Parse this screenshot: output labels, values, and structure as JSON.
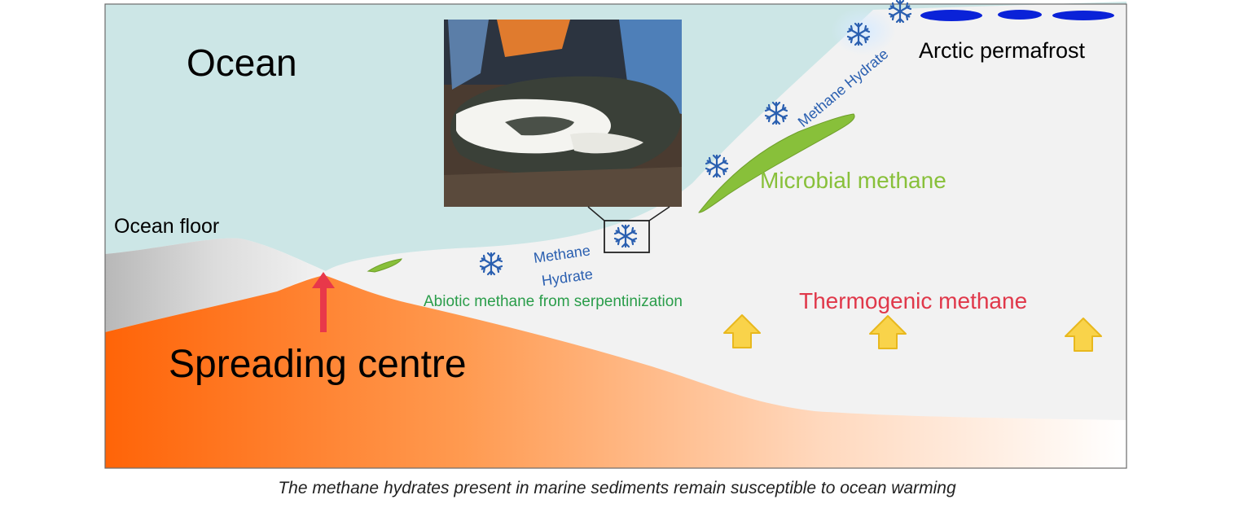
{
  "labels": {
    "ocean": "Ocean",
    "ocean_floor": "Ocean floor",
    "arctic_permafrost": "Arctic permafrost",
    "microbial_methane": "Microbial methane",
    "methane_hydrate_slope": "Methane Hydrate",
    "methane_hydrate_line1": "Methane",
    "methane_hydrate_line2": "Hydrate",
    "abiotic_methane": "Abiotic methane from serpentinization",
    "thermogenic_methane": "Thermogenic methane",
    "spreading_centre": "Spreading centre"
  },
  "caption": "The methane hydrates present in marine sediments remain susceptible to ocean warming",
  "colors": {
    "ocean": "#cce6e6",
    "sediment": "#f2f2f2",
    "crust_hot": "#ff6a10",
    "crust_cool": "#ffffff",
    "hydrate_text": "#2a5fb0",
    "microbial": "#88c03a",
    "abiotic": "#2a9d4a",
    "thermogenic": "#e0384a",
    "arrow_up": "#f9d34a",
    "magma_arrow": "#e8384a",
    "permafrost_lens": "#0a22d8"
  },
  "icons": [
    "snowflake-icon",
    "up-arrow-icon",
    "magma-arrow-icon",
    "permafrost-lens-icon",
    "hydrate-photo"
  ]
}
